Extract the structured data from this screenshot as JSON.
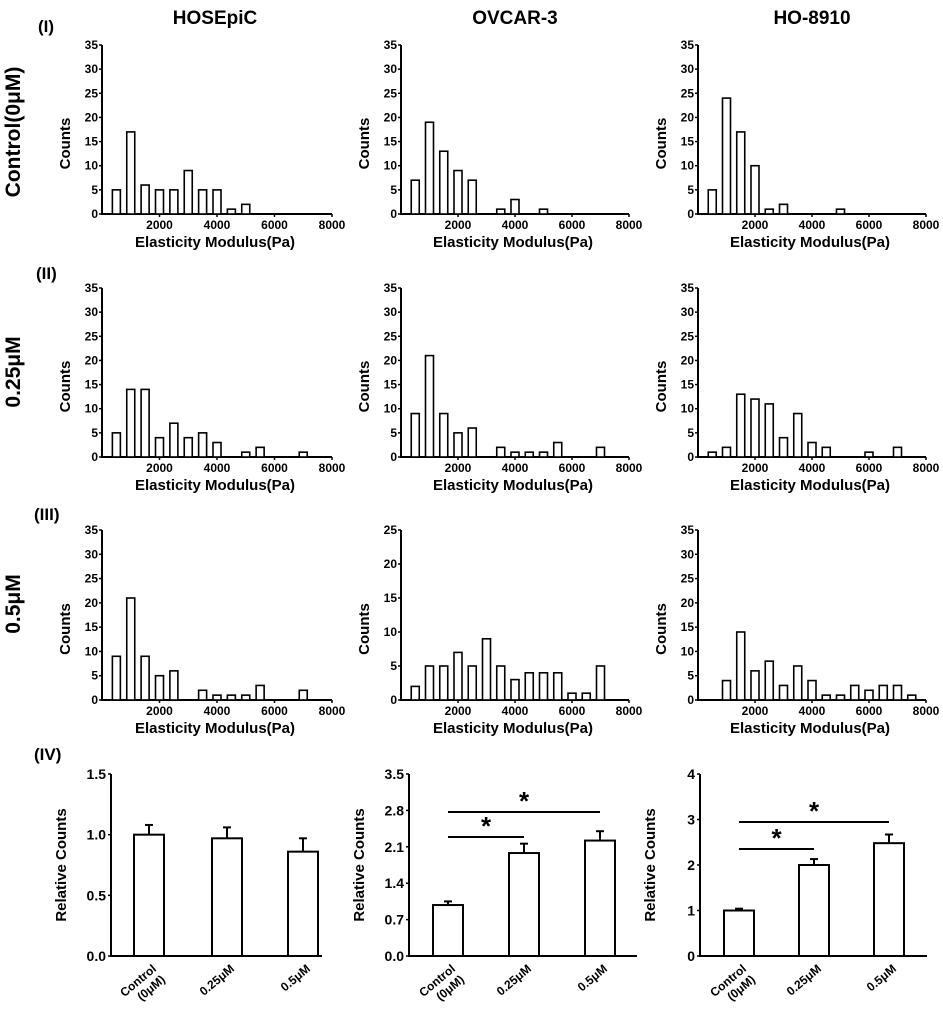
{
  "column_titles": [
    "HOSEpiC",
    "OVCAR-3",
    "HO-8910"
  ],
  "row_numerals": [
    "(I)",
    "(II)",
    "(III)",
    "(IV)"
  ],
  "row_labels": [
    "Control(0μM)",
    "0.25μM",
    "0.5μM"
  ],
  "chart_data": [
    {
      "type": "bar",
      "panel": "I-HOSEpiC",
      "xlabel": "Elasticity Modulus(Pa)",
      "ylabel": "Counts",
      "xlim": [
        0,
        8000
      ],
      "ylim": [
        0,
        35
      ],
      "xticks": [
        2000,
        4000,
        6000,
        8000
      ],
      "yticks": [
        0,
        5,
        10,
        15,
        20,
        25,
        30,
        35
      ],
      "x": [
        500,
        1000,
        1500,
        2000,
        2500,
        3000,
        3500,
        4000,
        4500,
        5000
      ],
      "values": [
        5,
        17,
        6,
        5,
        5,
        9,
        5,
        5,
        1,
        2
      ]
    },
    {
      "type": "bar",
      "panel": "I-OVCAR-3",
      "xlabel": "Elasticity Modulus(Pa)",
      "ylabel": "Counts",
      "xlim": [
        0,
        8000
      ],
      "ylim": [
        0,
        35
      ],
      "xticks": [
        2000,
        4000,
        6000,
        8000
      ],
      "yticks": [
        0,
        5,
        10,
        15,
        20,
        25,
        30,
        35
      ],
      "x": [
        500,
        1000,
        1500,
        2000,
        2500,
        3500,
        4000,
        5000
      ],
      "values": [
        7,
        19,
        13,
        9,
        7,
        1,
        3,
        1
      ]
    },
    {
      "type": "bar",
      "panel": "I-HO-8910",
      "xlabel": "Elasticity Modulus(Pa)",
      "ylabel": "Counts",
      "xlim": [
        0,
        8000
      ],
      "ylim": [
        0,
        35
      ],
      "xticks": [
        2000,
        4000,
        6000,
        8000
      ],
      "yticks": [
        0,
        5,
        10,
        15,
        20,
        25,
        30,
        35
      ],
      "x": [
        500,
        1000,
        1500,
        2000,
        2500,
        3000,
        5000
      ],
      "values": [
        5,
        24,
        17,
        10,
        1,
        2,
        1
      ]
    },
    {
      "type": "bar",
      "panel": "II-HOSEpiC",
      "xlabel": "Elasticity Modulus(Pa)",
      "ylabel": "Counts",
      "xlim": [
        0,
        8000
      ],
      "ylim": [
        0,
        35
      ],
      "xticks": [
        2000,
        4000,
        6000,
        8000
      ],
      "yticks": [
        0,
        5,
        10,
        15,
        20,
        25,
        30,
        35
      ],
      "x": [
        500,
        1000,
        1500,
        2000,
        2500,
        3000,
        3500,
        4000,
        5000,
        5500,
        7000
      ],
      "values": [
        5,
        14,
        14,
        4,
        7,
        4,
        5,
        3,
        1,
        2,
        1
      ]
    },
    {
      "type": "bar",
      "panel": "II-OVCAR-3",
      "xlabel": "Elasticity Modulus(Pa)",
      "ylabel": "Counts",
      "xlim": [
        0,
        8000
      ],
      "ylim": [
        0,
        35
      ],
      "xticks": [
        2000,
        4000,
        6000,
        8000
      ],
      "yticks": [
        0,
        5,
        10,
        15,
        20,
        25,
        30,
        35
      ],
      "x": [
        500,
        1000,
        1500,
        2000,
        2500,
        3500,
        4000,
        4500,
        5000,
        5500,
        7000
      ],
      "values": [
        9,
        21,
        9,
        5,
        6,
        2,
        1,
        1,
        1,
        3,
        2
      ]
    },
    {
      "type": "bar",
      "panel": "II-HO-8910",
      "xlabel": "Elasticity Modulus(Pa)",
      "ylabel": "Counts",
      "xlim": [
        0,
        8000
      ],
      "ylim": [
        0,
        35
      ],
      "xticks": [
        2000,
        4000,
        6000,
        8000
      ],
      "yticks": [
        0,
        5,
        10,
        15,
        20,
        25,
        30,
        35
      ],
      "x": [
        500,
        1000,
        1500,
        2000,
        2500,
        3000,
        3500,
        4000,
        4500,
        6000,
        7000
      ],
      "values": [
        1,
        2,
        13,
        12,
        11,
        4,
        9,
        3,
        2,
        1,
        2
      ]
    },
    {
      "type": "bar",
      "panel": "III-HOSEpiC",
      "xlabel": "Elasticity Modulus(Pa)",
      "ylabel": "Counts",
      "xlim": [
        0,
        8000
      ],
      "ylim": [
        0,
        35
      ],
      "xticks": [
        2000,
        4000,
        6000,
        8000
      ],
      "yticks": [
        0,
        5,
        10,
        15,
        20,
        25,
        30,
        35
      ],
      "x": [
        500,
        1000,
        1500,
        2000,
        2500,
        3500,
        4000,
        4500,
        5000,
        5500,
        7000
      ],
      "values": [
        9,
        21,
        9,
        5,
        6,
        2,
        1,
        1,
        1,
        3,
        2
      ]
    },
    {
      "type": "bar",
      "panel": "III-OVCAR-3",
      "xlabel": "Elasticity Modulus(Pa)",
      "ylabel": "Counts",
      "xlim": [
        0,
        8000
      ],
      "ylim": [
        0,
        25
      ],
      "xticks": [
        2000,
        4000,
        6000,
        8000
      ],
      "yticks": [
        0,
        5,
        10,
        15,
        20,
        25
      ],
      "x": [
        500,
        1000,
        1500,
        2000,
        2500,
        3000,
        3500,
        4000,
        4500,
        5000,
        5500,
        6000,
        6500,
        7000
      ],
      "values": [
        2,
        5,
        5,
        7,
        5,
        9,
        5,
        3,
        4,
        4,
        4,
        1,
        1,
        5
      ]
    },
    {
      "type": "bar",
      "panel": "III-HO-8910",
      "xlabel": "Elasticity Modulus(Pa)",
      "ylabel": "Counts",
      "xlim": [
        0,
        8000
      ],
      "ylim": [
        0,
        35
      ],
      "xticks": [
        2000,
        4000,
        6000,
        8000
      ],
      "yticks": [
        0,
        5,
        10,
        15,
        20,
        25,
        30,
        35
      ],
      "x": [
        1000,
        1500,
        2000,
        2500,
        3000,
        3500,
        4000,
        4500,
        5000,
        5500,
        6000,
        6500,
        7000,
        7500
      ],
      "values": [
        4,
        14,
        6,
        8,
        3,
        7,
        4,
        1,
        1,
        3,
        2,
        3,
        3,
        1
      ]
    },
    {
      "type": "bar",
      "panel": "IV-HOSEpiC",
      "xlabel": "",
      "ylabel": "Relative Counts",
      "ylim": [
        0,
        1.5
      ],
      "yticks": [
        "0.0",
        "0.5",
        "1.0",
        "1.5"
      ],
      "categories": [
        "Control\n(0μM)",
        "0.25μM",
        "0.5μM"
      ],
      "values": [
        1.0,
        0.97,
        0.86
      ],
      "errors": [
        0.08,
        0.09,
        0.11
      ],
      "significance": []
    },
    {
      "type": "bar",
      "panel": "IV-OVCAR-3",
      "xlabel": "",
      "ylabel": "Relative Counts",
      "ylim": [
        0,
        3.5
      ],
      "yticks": [
        "0.0",
        "0.7",
        "1.4",
        "2.1",
        "2.8",
        "3.5"
      ],
      "categories": [
        "Control\n(0μM)",
        "0.25μM",
        "0.5μM"
      ],
      "values": [
        0.98,
        1.98,
        2.22
      ],
      "errors": [
        0.07,
        0.18,
        0.18
      ],
      "significance": [
        {
          "from": 0,
          "to": 2,
          "label": "*"
        },
        {
          "from": 0,
          "to": 1,
          "label": "*"
        }
      ]
    },
    {
      "type": "bar",
      "panel": "IV-HO-8910",
      "xlabel": "",
      "ylabel": "Relative Counts",
      "ylim": [
        0,
        4
      ],
      "yticks": [
        "0",
        "1",
        "2",
        "3",
        "4"
      ],
      "categories": [
        "Control\n(0μM)",
        "0.25μM",
        "0.5μM"
      ],
      "values": [
        1.0,
        2.0,
        2.48
      ],
      "errors": [
        0.04,
        0.13,
        0.19
      ],
      "significance": [
        {
          "from": 0,
          "to": 2,
          "label": "*"
        },
        {
          "from": 0,
          "to": 1,
          "label": "*"
        }
      ]
    }
  ]
}
